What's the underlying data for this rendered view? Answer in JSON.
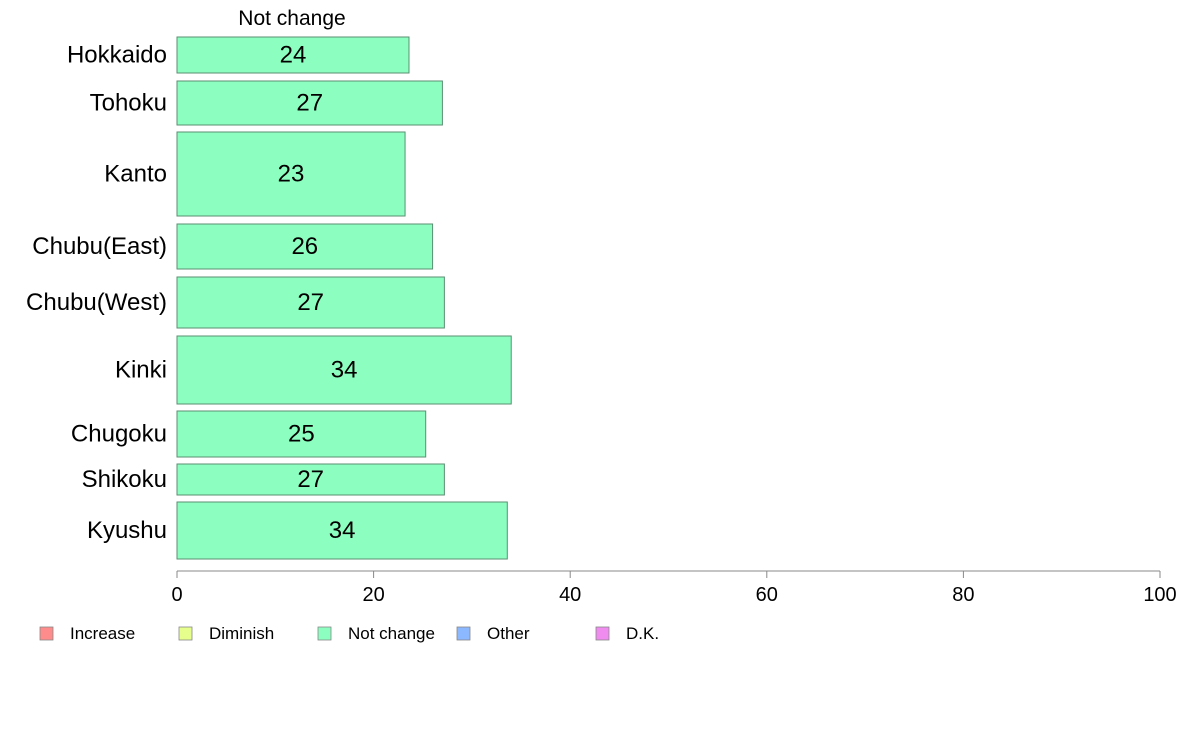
{
  "chart_data": {
    "type": "bar",
    "orientation": "horizontal",
    "title": "Not change",
    "categories": [
      "Hokkaido",
      "Tohoku",
      "Kanto",
      "Chubu(East)",
      "Chubu(West)",
      "Kinki",
      "Chugoku",
      "Shikoku",
      "Kyushu"
    ],
    "series": [
      {
        "name": "Not change",
        "color": "#8cffc0",
        "values": [
          24,
          27,
          23,
          26,
          27,
          34,
          25,
          27,
          34
        ],
        "bar_widths": [
          23.6,
          27.0,
          23.2,
          26.0,
          27.2,
          34.0,
          25.3,
          27.2,
          33.6
        ]
      }
    ],
    "xlim": [
      0,
      100
    ],
    "xticks": [
      0,
      20,
      40,
      60,
      80,
      100
    ],
    "grid": false,
    "legend": {
      "placement": "bottom-left",
      "entries": [
        {
          "label": "Increase",
          "color": "#ff8c8c"
        },
        {
          "label": "Diminish",
          "color": "#e6ff8c"
        },
        {
          "label": "Not change",
          "color": "#8cffc0"
        },
        {
          "label": "Other",
          "color": "#8cb8ff"
        },
        {
          "label": "D.K.",
          "color": "#f08cf0"
        }
      ]
    }
  }
}
